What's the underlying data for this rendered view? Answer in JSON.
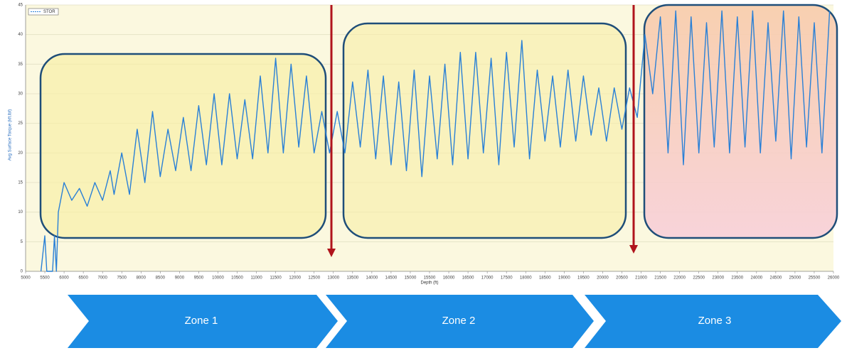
{
  "chart_data": {
    "type": "line",
    "x_label": "Depth (ft)",
    "y_label": "Avg Surface Torque (kft.lbf)",
    "legend": "top-left",
    "grid": true,
    "x": [
      5400,
      5500,
      5550,
      5700,
      5750,
      5800,
      5850,
      6000,
      6200,
      6400,
      6600,
      6800,
      7000,
      7200,
      7300,
      7500,
      7700,
      7900,
      8100,
      8300,
      8500,
      8700,
      8900,
      9100,
      9300,
      9500,
      9700,
      9900,
      10100,
      10300,
      10500,
      10700,
      10900,
      11100,
      11300,
      11500,
      11700,
      11900,
      12100,
      12300,
      12500,
      12700,
      12900,
      13100,
      13300,
      13500,
      13700,
      13900,
      14100,
      14300,
      14500,
      14700,
      14900,
      15100,
      15300,
      15500,
      15700,
      15900,
      16100,
      16300,
      16500,
      16700,
      16900,
      17100,
      17300,
      17500,
      17700,
      17900,
      18100,
      18300,
      18500,
      18700,
      18900,
      19100,
      19300,
      19500,
      19700,
      19900,
      20100,
      20300,
      20500,
      20700,
      20900,
      21100,
      21300,
      21500,
      21700,
      21900,
      22100,
      22300,
      22500,
      22700,
      22900,
      23100,
      23300,
      23500,
      23700,
      23900,
      24100,
      24300,
      24500,
      24700,
      24900,
      25100,
      25300,
      25500,
      25700,
      25900
    ],
    "series": [
      {
        "name": "STOR",
        "color": "#2a80d6",
        "values": [
          0,
          6,
          0,
          0,
          6,
          0,
          10,
          15,
          12,
          14,
          11,
          15,
          12,
          17,
          13,
          20,
          13,
          24,
          15,
          27,
          16,
          24,
          17,
          26,
          17,
          28,
          18,
          30,
          18,
          30,
          19,
          29,
          19,
          33,
          20,
          36,
          20,
          35,
          21,
          33,
          20,
          27,
          20,
          27,
          20,
          32,
          21,
          34,
          19,
          33,
          18,
          32,
          17,
          34,
          16,
          33,
          19,
          35,
          18,
          37,
          19,
          37,
          20,
          36,
          18,
          37,
          21,
          39,
          19,
          34,
          22,
          33,
          21,
          34,
          22,
          33,
          23,
          31,
          22,
          31,
          24,
          31,
          26,
          40,
          30,
          43,
          20,
          44,
          18,
          43,
          20,
          42,
          21,
          44,
          20,
          43,
          21,
          44,
          20,
          42,
          22,
          44,
          19,
          43,
          21,
          42,
          20,
          44
        ]
      }
    ],
    "xlim": [
      5000,
      26000
    ],
    "xticks": [
      5000,
      5500,
      6000,
      6500,
      7000,
      7500,
      8000,
      8500,
      9000,
      9500,
      10000,
      10500,
      11000,
      11500,
      12000,
      12500,
      13000,
      13500,
      14000,
      14500,
      15000,
      15500,
      16000,
      16500,
      17000,
      17500,
      18000,
      18500,
      19000,
      19500,
      20000,
      20500,
      21000,
      21500,
      22000,
      22500,
      23000,
      23500,
      24000,
      24500,
      25000,
      25500,
      26000
    ],
    "ylim": [
      0,
      45
    ],
    "yticks": [
      0,
      5,
      10,
      15,
      20,
      25,
      30,
      35,
      40,
      45
    ]
  },
  "zone_labels": [
    "Zone 1",
    "Zone 2",
    "Zone 3"
  ]
}
